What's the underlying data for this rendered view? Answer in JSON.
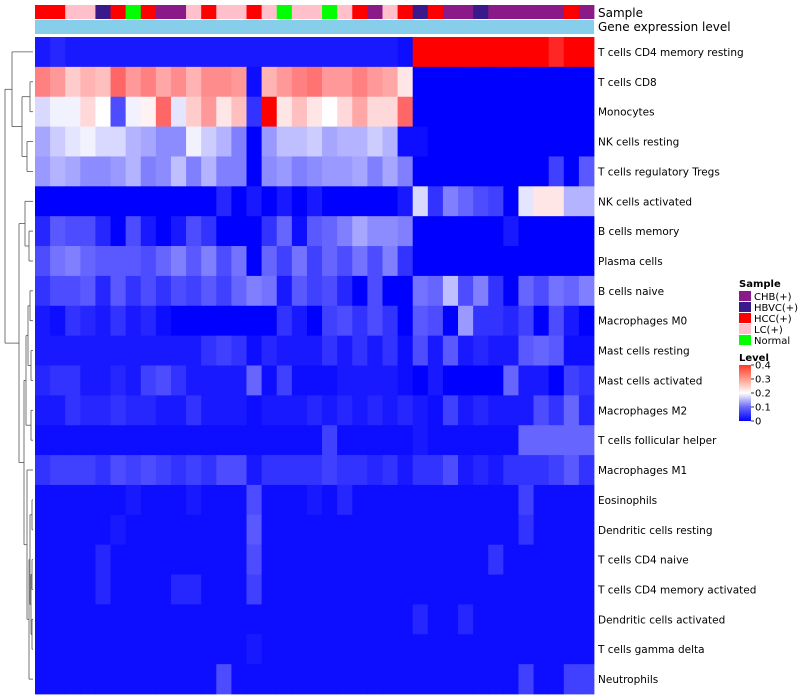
{
  "chart_data": {
    "type": "heatmap",
    "title": "",
    "annotation_tracks": [
      "Sample",
      "Gene expression level"
    ],
    "row_labels": [
      "T cells CD4 memory resting",
      "T cells CD8",
      "Monocytes",
      "NK cells resting",
      "T cells regulatory  Tregs",
      "NK cells activated",
      "B cells memory",
      "Plasma cells",
      "B cells naive",
      "Macrophages M0",
      "Mast cells resting",
      "Mast cells activated",
      "Macrophages M2",
      "T cells follicular helper",
      "Macrophages M1",
      "Eosinophils",
      "Dendritic cells resting",
      "T cells CD4 naive",
      "T cells CD4 memory activated",
      "Dendritic cells activated",
      "T cells gamma delta",
      "Neutrophils"
    ],
    "column_count": 37,
    "sample_groups": [
      "HCC(+)",
      "HCC(+)",
      "LC(+)",
      "LC(+)",
      "HBVC(+)",
      "HCC(+)",
      "Normal",
      "HCC(+)",
      "CHB(+)",
      "CHB(+)",
      "LC(+)",
      "HCC(+)",
      "LC(+)",
      "LC(+)",
      "HCC(+)",
      "LC(+)",
      "Normal",
      "LC(+)",
      "LC(+)",
      "Normal",
      "LC(+)",
      "HCC(+)",
      "CHB(+)",
      "LC(+)",
      "HCC(+)",
      "HBVC(+)",
      "HCC(+)",
      "CHB(+)",
      "CHB(+)",
      "HBVC(+)",
      "CHB(+)",
      "CHB(+)",
      "CHB(+)",
      "CHB(+)",
      "CHB(+)",
      "HCC(+)",
      "CHB(+)"
    ],
    "sample_legend": {
      "title": "Sample",
      "entries": [
        {
          "label": "CHB(+)",
          "color": "#8b1a89"
        },
        {
          "label": "HBVC(+)",
          "color": "#3a1a8a"
        },
        {
          "label": "HCC(+)",
          "color": "#ff0000"
        },
        {
          "label": "LC(+)",
          "color": "#ffc0cb"
        },
        {
          "label": "Normal",
          "color": "#00ff00"
        }
      ]
    },
    "gene_expression_color": "#87ceeb",
    "level_legend": {
      "title": "Level",
      "ticks": [
        0.4,
        0.3,
        0.2,
        0.1,
        0
      ],
      "tick_labels": [
        "0.4",
        "0.3",
        "0.2",
        "0.1",
        "0"
      ],
      "range": [
        0,
        0.4
      ],
      "colors": [
        "#0000ff",
        "#ffffff",
        "#ff0000"
      ]
    },
    "matrix": [
      [
        0.02,
        0.03,
        0.02,
        0.02,
        0.02,
        0.02,
        0.02,
        0.02,
        0.02,
        0.02,
        0.02,
        0.02,
        0.02,
        0.02,
        0.02,
        0.02,
        0.02,
        0.02,
        0.02,
        0.02,
        0.02,
        0.02,
        0.02,
        0.02,
        0.01,
        0.4,
        0.4,
        0.4,
        0.4,
        0.4,
        0.4,
        0.4,
        0.4,
        0.4,
        0.37,
        0.4,
        0.4
      ],
      [
        0.3,
        0.28,
        0.24,
        0.26,
        0.25,
        0.32,
        0.28,
        0.3,
        0.27,
        0.29,
        0.26,
        0.29,
        0.29,
        0.28,
        0.01,
        0.26,
        0.28,
        0.3,
        0.31,
        0.28,
        0.28,
        0.3,
        0.28,
        0.27,
        0.22,
        0.0,
        0.0,
        0.0,
        0.0,
        0.0,
        0.0,
        0.0,
        0.0,
        0.0,
        0.0,
        0.0,
        0.0
      ],
      [
        0.17,
        0.19,
        0.19,
        0.23,
        0.2,
        0.06,
        0.19,
        0.21,
        0.32,
        0.18,
        0.24,
        0.28,
        0.22,
        0.25,
        0.04,
        0.4,
        0.22,
        0.25,
        0.22,
        0.2,
        0.23,
        0.27,
        0.23,
        0.23,
        0.32,
        0.0,
        0.0,
        0.0,
        0.0,
        0.0,
        0.0,
        0.0,
        0.0,
        0.0,
        0.0,
        0.0,
        0.0
      ],
      [
        0.13,
        0.16,
        0.18,
        0.19,
        0.17,
        0.17,
        0.14,
        0.13,
        0.11,
        0.11,
        0.19,
        0.16,
        0.14,
        0.1,
        0.0,
        0.12,
        0.15,
        0.15,
        0.16,
        0.13,
        0.14,
        0.14,
        0.16,
        0.14,
        0.01,
        0.01,
        0.0,
        0.0,
        0.0,
        0.0,
        0.0,
        0.0,
        0.0,
        0.0,
        0.0,
        0.0,
        0.0
      ],
      [
        0.12,
        0.14,
        0.13,
        0.11,
        0.11,
        0.12,
        0.14,
        0.1,
        0.11,
        0.15,
        0.1,
        0.14,
        0.1,
        0.1,
        0.0,
        0.11,
        0.12,
        0.1,
        0.11,
        0.12,
        0.12,
        0.13,
        0.1,
        0.13,
        0.1,
        0.0,
        0.0,
        0.0,
        0.0,
        0.0,
        0.0,
        0.0,
        0.0,
        0.0,
        0.05,
        0.0,
        0.07
      ],
      [
        0.0,
        0.0,
        0.0,
        0.0,
        0.0,
        0.0,
        0.0,
        0.0,
        0.0,
        0.0,
        0.0,
        0.0,
        0.03,
        0.0,
        0.02,
        0.0,
        0.02,
        0.0,
        0.02,
        0.0,
        0.0,
        0.0,
        0.0,
        0.0,
        0.02,
        0.17,
        0.04,
        0.1,
        0.08,
        0.06,
        0.05,
        0.0,
        0.18,
        0.22,
        0.22,
        0.14,
        0.14
      ],
      [
        0.03,
        0.07,
        0.06,
        0.06,
        0.03,
        0.0,
        0.06,
        0.02,
        0.0,
        0.02,
        0.06,
        0.04,
        0.0,
        0.0,
        0.0,
        0.04,
        0.08,
        0.01,
        0.07,
        0.08,
        0.1,
        0.13,
        0.11,
        0.11,
        0.1,
        0.0,
        0.0,
        0.0,
        0.0,
        0.0,
        0.0,
        0.02,
        0.0,
        0.0,
        0.0,
        0.0,
        0.0
      ],
      [
        0.06,
        0.09,
        0.1,
        0.08,
        0.07,
        0.07,
        0.07,
        0.06,
        0.08,
        0.1,
        0.07,
        0.1,
        0.06,
        0.09,
        0.0,
        0.08,
        0.05,
        0.09,
        0.05,
        0.08,
        0.06,
        0.09,
        0.06,
        0.1,
        0.04,
        0.0,
        0.0,
        0.0,
        0.0,
        0.0,
        0.0,
        0.0,
        0.0,
        0.0,
        0.0,
        0.0,
        0.0
      ],
      [
        0.04,
        0.06,
        0.06,
        0.07,
        0.03,
        0.07,
        0.04,
        0.06,
        0.04,
        0.06,
        0.05,
        0.07,
        0.05,
        0.08,
        0.1,
        0.09,
        0.02,
        0.07,
        0.05,
        0.06,
        0.03,
        0.0,
        0.06,
        0.0,
        0.0,
        0.09,
        0.08,
        0.15,
        0.06,
        0.1,
        0.04,
        0.0,
        0.08,
        0.06,
        0.09,
        0.08,
        0.1
      ],
      [
        0.02,
        0.01,
        0.04,
        0.03,
        0.02,
        0.04,
        0.02,
        0.03,
        0.01,
        0.0,
        0.0,
        0.0,
        0.0,
        0.0,
        0.0,
        0.0,
        0.04,
        0.02,
        0.0,
        0.05,
        0.06,
        0.04,
        0.06,
        0.04,
        0.0,
        0.07,
        0.06,
        0.0,
        0.12,
        0.04,
        0.04,
        0.03,
        0.05,
        0.0,
        0.06,
        0.02,
        0.0
      ],
      [
        0.02,
        0.02,
        0.02,
        0.02,
        0.02,
        0.02,
        0.02,
        0.02,
        0.02,
        0.02,
        0.02,
        0.04,
        0.05,
        0.04,
        0.01,
        0.03,
        0.02,
        0.02,
        0.02,
        0.04,
        0.02,
        0.04,
        0.02,
        0.04,
        0.01,
        0.06,
        0.02,
        0.07,
        0.02,
        0.03,
        0.02,
        0.02,
        0.07,
        0.08,
        0.07,
        0.01,
        0.01
      ],
      [
        0.03,
        0.04,
        0.04,
        0.02,
        0.02,
        0.03,
        0.02,
        0.05,
        0.06,
        0.04,
        0.02,
        0.02,
        0.02,
        0.02,
        0.08,
        0.01,
        0.05,
        0.01,
        0.01,
        0.01,
        0.02,
        0.02,
        0.02,
        0.02,
        0.01,
        0.0,
        0.02,
        0.0,
        0.0,
        0.0,
        0.0,
        0.08,
        0.02,
        0.02,
        0.0,
        0.05,
        0.04
      ],
      [
        0.02,
        0.02,
        0.04,
        0.03,
        0.03,
        0.04,
        0.03,
        0.03,
        0.02,
        0.02,
        0.04,
        0.02,
        0.02,
        0.02,
        0.01,
        0.02,
        0.02,
        0.02,
        0.03,
        0.02,
        0.03,
        0.02,
        0.03,
        0.02,
        0.03,
        0.02,
        0.01,
        0.05,
        0.02,
        0.03,
        0.02,
        0.02,
        0.02,
        0.06,
        0.04,
        0.08,
        0.03
      ],
      [
        0.01,
        0.01,
        0.01,
        0.01,
        0.01,
        0.01,
        0.01,
        0.01,
        0.01,
        0.01,
        0.01,
        0.01,
        0.01,
        0.01,
        0.01,
        0.01,
        0.01,
        0.01,
        0.01,
        0.05,
        0.01,
        0.01,
        0.01,
        0.01,
        0.01,
        0.02,
        0.01,
        0.01,
        0.01,
        0.01,
        0.01,
        0.01,
        0.08,
        0.08,
        0.08,
        0.08,
        0.08
      ],
      [
        0.04,
        0.05,
        0.05,
        0.05,
        0.04,
        0.06,
        0.05,
        0.06,
        0.05,
        0.04,
        0.05,
        0.04,
        0.06,
        0.06,
        0.02,
        0.04,
        0.04,
        0.04,
        0.04,
        0.05,
        0.04,
        0.04,
        0.03,
        0.04,
        0.02,
        0.04,
        0.04,
        0.06,
        0.02,
        0.03,
        0.02,
        0.04,
        0.04,
        0.04,
        0.05,
        0.07,
        0.04
      ],
      [
        0.01,
        0.01,
        0.01,
        0.01,
        0.01,
        0.01,
        0.02,
        0.01,
        0.01,
        0.01,
        0.02,
        0.01,
        0.01,
        0.01,
        0.06,
        0.01,
        0.01,
        0.01,
        0.02,
        0.01,
        0.03,
        0.01,
        0.01,
        0.01,
        0.01,
        0.01,
        0.01,
        0.01,
        0.01,
        0.01,
        0.01,
        0.01,
        0.05,
        0.01,
        0.01,
        0.01,
        0.01
      ],
      [
        0.01,
        0.01,
        0.01,
        0.01,
        0.01,
        0.02,
        0.01,
        0.01,
        0.01,
        0.01,
        0.01,
        0.01,
        0.01,
        0.01,
        0.07,
        0.01,
        0.01,
        0.01,
        0.01,
        0.01,
        0.01,
        0.01,
        0.01,
        0.01,
        0.01,
        0.01,
        0.01,
        0.01,
        0.01,
        0.01,
        0.01,
        0.01,
        0.04,
        0.01,
        0.01,
        0.01,
        0.01
      ],
      [
        0.01,
        0.01,
        0.01,
        0.01,
        0.03,
        0.01,
        0.01,
        0.01,
        0.01,
        0.01,
        0.01,
        0.01,
        0.01,
        0.01,
        0.06,
        0.01,
        0.01,
        0.01,
        0.01,
        0.01,
        0.01,
        0.01,
        0.01,
        0.01,
        0.01,
        0.01,
        0.01,
        0.01,
        0.01,
        0.01,
        0.04,
        0.01,
        0.01,
        0.01,
        0.01,
        0.01,
        0.01
      ],
      [
        0.01,
        0.01,
        0.01,
        0.01,
        0.03,
        0.01,
        0.01,
        0.01,
        0.01,
        0.03,
        0.03,
        0.01,
        0.01,
        0.01,
        0.05,
        0.01,
        0.01,
        0.01,
        0.01,
        0.01,
        0.01,
        0.01,
        0.01,
        0.01,
        0.01,
        0.01,
        0.01,
        0.01,
        0.01,
        0.01,
        0.01,
        0.01,
        0.01,
        0.01,
        0.01,
        0.01,
        0.01
      ],
      [
        0.01,
        0.01,
        0.01,
        0.01,
        0.01,
        0.01,
        0.01,
        0.01,
        0.01,
        0.01,
        0.01,
        0.01,
        0.01,
        0.01,
        0.01,
        0.01,
        0.01,
        0.01,
        0.01,
        0.01,
        0.01,
        0.01,
        0.01,
        0.01,
        0.01,
        0.03,
        0.01,
        0.01,
        0.03,
        0.01,
        0.01,
        0.01,
        0.01,
        0.01,
        0.01,
        0.01,
        0.01
      ],
      [
        0.01,
        0.01,
        0.01,
        0.01,
        0.01,
        0.01,
        0.01,
        0.01,
        0.01,
        0.01,
        0.01,
        0.01,
        0.01,
        0.01,
        0.02,
        0.01,
        0.01,
        0.01,
        0.01,
        0.01,
        0.01,
        0.01,
        0.01,
        0.01,
        0.01,
        0.01,
        0.01,
        0.01,
        0.01,
        0.01,
        0.01,
        0.01,
        0.01,
        0.01,
        0.01,
        0.01,
        0.01
      ],
      [
        0.01,
        0.01,
        0.01,
        0.01,
        0.01,
        0.01,
        0.01,
        0.01,
        0.01,
        0.01,
        0.01,
        0.01,
        0.06,
        0.01,
        0.01,
        0.01,
        0.01,
        0.01,
        0.01,
        0.01,
        0.01,
        0.01,
        0.01,
        0.01,
        0.01,
        0.01,
        0.01,
        0.01,
        0.01,
        0.01,
        0.01,
        0.01,
        0.05,
        0.01,
        0.01,
        0.05,
        0.05
      ]
    ]
  }
}
